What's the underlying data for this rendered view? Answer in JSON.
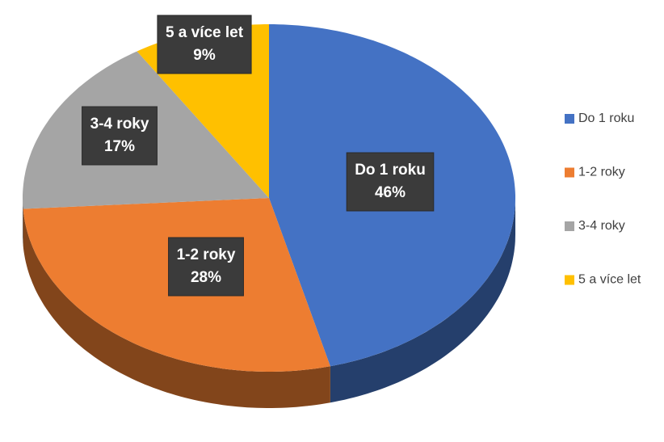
{
  "chart_data": {
    "type": "pie",
    "categories": [
      "Do 1 roku",
      "1-2 roky",
      "3-4 roky",
      "5 a více let"
    ],
    "values": [
      46,
      28,
      17,
      9
    ],
    "value_labels": [
      "46%",
      "28%",
      "17%",
      "9%"
    ],
    "colors": [
      "#4472c4",
      "#ed7d31",
      "#a5a5a5",
      "#ffc000"
    ],
    "legend": "right"
  }
}
